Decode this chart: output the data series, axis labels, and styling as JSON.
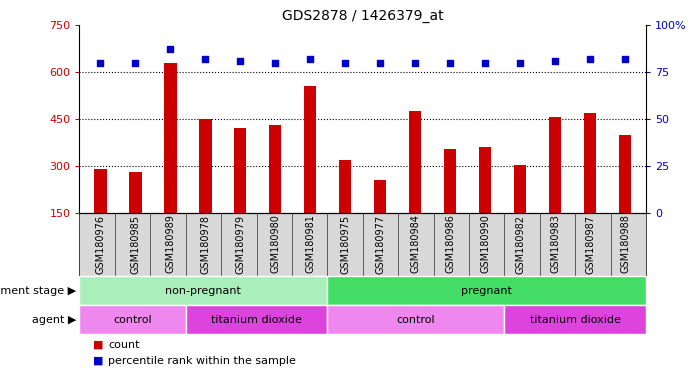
{
  "title": "GDS2878 / 1426379_at",
  "samples": [
    "GSM180976",
    "GSM180985",
    "GSM180989",
    "GSM180978",
    "GSM180979",
    "GSM180980",
    "GSM180981",
    "GSM180975",
    "GSM180977",
    "GSM180984",
    "GSM180986",
    "GSM180990",
    "GSM180982",
    "GSM180983",
    "GSM180987",
    "GSM180988"
  ],
  "counts": [
    290,
    280,
    630,
    450,
    420,
    430,
    555,
    320,
    255,
    475,
    355,
    360,
    305,
    455,
    470,
    400
  ],
  "percentile_ranks": [
    80,
    80,
    87,
    82,
    81,
    80,
    82,
    80,
    80,
    80,
    80,
    80,
    80,
    81,
    82,
    82
  ],
  "ylim_left": [
    150,
    750
  ],
  "ylim_right": [
    0,
    100
  ],
  "yticks_left": [
    150,
    300,
    450,
    600,
    750
  ],
  "yticks_right": [
    0,
    25,
    50,
    75,
    100
  ],
  "bar_color": "#cc0000",
  "dot_color": "#0000cc",
  "bar_bottom": 150,
  "groups": {
    "development_stage": [
      {
        "label": "non-pregnant",
        "start": 0,
        "end": 7,
        "color": "#aaeebb"
      },
      {
        "label": "pregnant",
        "start": 7,
        "end": 16,
        "color": "#44dd66"
      }
    ],
    "agent": [
      {
        "label": "control",
        "start": 0,
        "end": 3,
        "color": "#ee88ee"
      },
      {
        "label": "titanium dioxide",
        "start": 3,
        "end": 7,
        "color": "#dd44dd"
      },
      {
        "label": "control",
        "start": 7,
        "end": 12,
        "color": "#ee88ee"
      },
      {
        "label": "titanium dioxide",
        "start": 12,
        "end": 16,
        "color": "#dd44dd"
      }
    ]
  },
  "legend": [
    {
      "label": "count",
      "color": "#cc0000"
    },
    {
      "label": "percentile rank within the sample",
      "color": "#0000cc"
    }
  ],
  "bg_tick_color": "#cccccc",
  "label_left_text": [
    "development stage",
    "agent"
  ],
  "title_fontsize": 10,
  "tick_fontsize": 7,
  "axis_fontsize": 8,
  "group_fontsize": 8
}
